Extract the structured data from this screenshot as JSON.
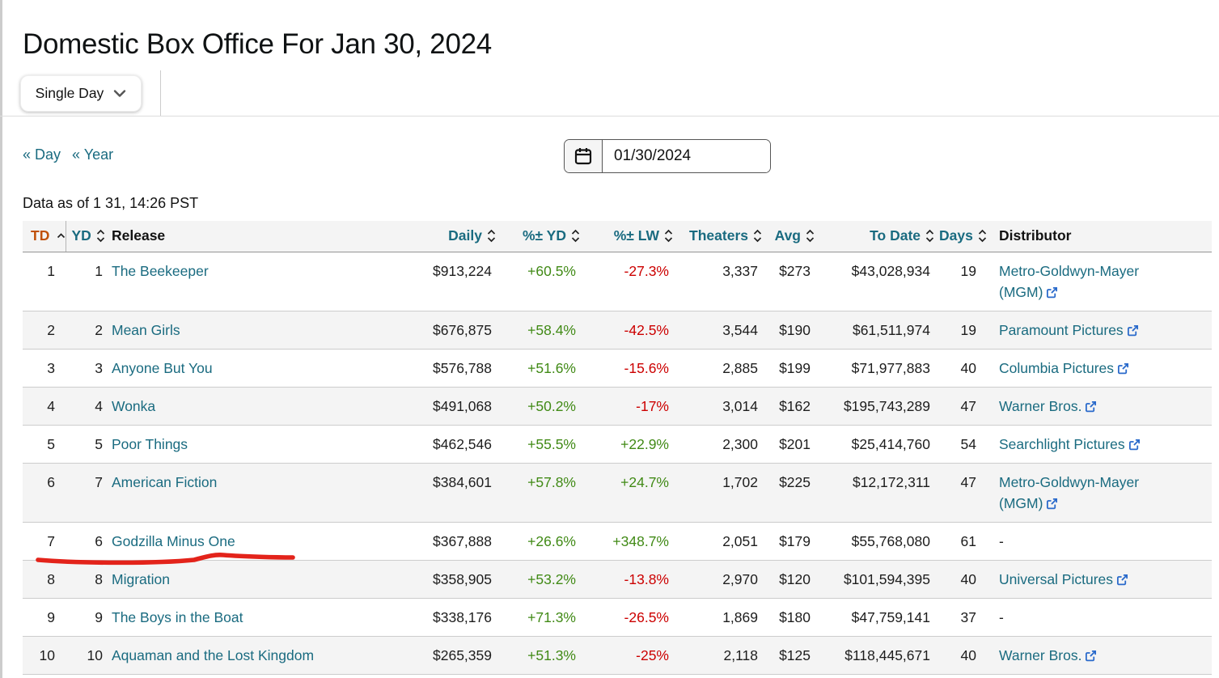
{
  "page": {
    "title": "Domestic Box Office For Jan 30, 2024",
    "data_as_of": "Data as of 1 31, 14:26 PST"
  },
  "controls": {
    "range_selector_label": "Single Day",
    "nav_links": [
      {
        "label": "« Day"
      },
      {
        "label": "« Year"
      }
    ],
    "date_value": "01/30/2024",
    "calendar_icon": "calendar-icon",
    "chevron_icon": "chevron-down-icon"
  },
  "colors": {
    "link_teal": "#1a6b80",
    "sorted_column_orange": "#c05108",
    "positive_green": "#418a16",
    "negative_red": "#cc0000",
    "external_link_blue": "#2a6acb",
    "annotation_red": "#e3231a",
    "row_alt_gray": "#f4f4f4"
  },
  "table": {
    "columns": [
      {
        "key": "td",
        "label": "TD",
        "sortable": true,
        "sort_state": "asc",
        "header_style": "sorted"
      },
      {
        "key": "yd",
        "label": "YD",
        "sortable": true,
        "sort_state": "both",
        "header_style": "sortable"
      },
      {
        "key": "release",
        "label": "Release",
        "sortable": false,
        "sort_state": "none",
        "header_style": "plain"
      },
      {
        "key": "daily",
        "label": "Daily",
        "sortable": true,
        "sort_state": "both",
        "header_style": "sortable"
      },
      {
        "key": "pct_yd",
        "label": "%± YD",
        "sortable": true,
        "sort_state": "both",
        "header_style": "sortable"
      },
      {
        "key": "pct_lw",
        "label": "%± LW",
        "sortable": true,
        "sort_state": "both",
        "header_style": "sortable"
      },
      {
        "key": "theaters",
        "label": "Theaters",
        "sortable": true,
        "sort_state": "both",
        "header_style": "sortable"
      },
      {
        "key": "avg",
        "label": "Avg",
        "sortable": true,
        "sort_state": "both",
        "header_style": "sortable"
      },
      {
        "key": "to_date",
        "label": "To Date",
        "sortable": true,
        "sort_state": "both",
        "header_style": "sortable"
      },
      {
        "key": "days",
        "label": "Days",
        "sortable": true,
        "sort_state": "both",
        "header_style": "sortable"
      },
      {
        "key": "distributor",
        "label": "Distributor",
        "sortable": false,
        "sort_state": "none",
        "header_style": "plain"
      }
    ],
    "rows": [
      {
        "td": "1",
        "yd": "1",
        "release": "The Beekeeper",
        "daily": "$913,224",
        "pct_yd": "+60.5%",
        "pct_lw": "-27.3%",
        "theaters": "3,337",
        "avg": "$273",
        "to_date": "$43,028,934",
        "days": "19",
        "distributor": {
          "label": "Metro-Goldwyn-Mayer (MGM)",
          "external": true
        }
      },
      {
        "td": "2",
        "yd": "2",
        "release": "Mean Girls",
        "daily": "$676,875",
        "pct_yd": "+58.4%",
        "pct_lw": "-42.5%",
        "theaters": "3,544",
        "avg": "$190",
        "to_date": "$61,511,974",
        "days": "19",
        "distributor": {
          "label": "Paramount Pictures",
          "external": true
        }
      },
      {
        "td": "3",
        "yd": "3",
        "release": "Anyone But You",
        "daily": "$576,788",
        "pct_yd": "+51.6%",
        "pct_lw": "-15.6%",
        "theaters": "2,885",
        "avg": "$199",
        "to_date": "$71,977,883",
        "days": "40",
        "distributor": {
          "label": "Columbia Pictures",
          "external": true
        }
      },
      {
        "td": "4",
        "yd": "4",
        "release": "Wonka",
        "daily": "$491,068",
        "pct_yd": "+50.2%",
        "pct_lw": "-17%",
        "theaters": "3,014",
        "avg": "$162",
        "to_date": "$195,743,289",
        "days": "47",
        "distributor": {
          "label": "Warner Bros.",
          "external": true
        }
      },
      {
        "td": "5",
        "yd": "5",
        "release": "Poor Things",
        "daily": "$462,546",
        "pct_yd": "+55.5%",
        "pct_lw": "+22.9%",
        "theaters": "2,300",
        "avg": "$201",
        "to_date": "$25,414,760",
        "days": "54",
        "distributor": {
          "label": "Searchlight Pictures",
          "external": true
        }
      },
      {
        "td": "6",
        "yd": "7",
        "release": "American Fiction",
        "daily": "$384,601",
        "pct_yd": "+57.8%",
        "pct_lw": "+24.7%",
        "theaters": "1,702",
        "avg": "$225",
        "to_date": "$12,172,311",
        "days": "47",
        "distributor": {
          "label": "Metro-Goldwyn-Mayer (MGM)",
          "external": true
        }
      },
      {
        "td": "7",
        "yd": "6",
        "release": "Godzilla Minus One",
        "daily": "$367,888",
        "pct_yd": "+26.6%",
        "pct_lw": "+348.7%",
        "theaters": "2,051",
        "avg": "$179",
        "to_date": "$55,768,080",
        "days": "61",
        "distributor": {
          "label": "-",
          "external": false
        }
      },
      {
        "td": "8",
        "yd": "8",
        "release": "Migration",
        "daily": "$358,905",
        "pct_yd": "+53.2%",
        "pct_lw": "-13.8%",
        "theaters": "2,970",
        "avg": "$120",
        "to_date": "$101,594,395",
        "days": "40",
        "distributor": {
          "label": "Universal Pictures",
          "external": true
        }
      },
      {
        "td": "9",
        "yd": "9",
        "release": "The Boys in the Boat",
        "daily": "$338,176",
        "pct_yd": "+71.3%",
        "pct_lw": "-26.5%",
        "theaters": "1,869",
        "avg": "$180",
        "to_date": "$47,759,141",
        "days": "37",
        "distributor": {
          "label": "-",
          "external": false
        }
      },
      {
        "td": "10",
        "yd": "10",
        "release": "Aquaman and the Lost Kingdom",
        "daily": "$265,359",
        "pct_yd": "+51.3%",
        "pct_lw": "-25%",
        "theaters": "2,118",
        "avg": "$125",
        "to_date": "$118,445,671",
        "days": "40",
        "distributor": {
          "label": "Warner Bros.",
          "external": true
        }
      }
    ]
  },
  "annotation": {
    "type": "red-underline",
    "target": "Godzilla Minus One"
  }
}
